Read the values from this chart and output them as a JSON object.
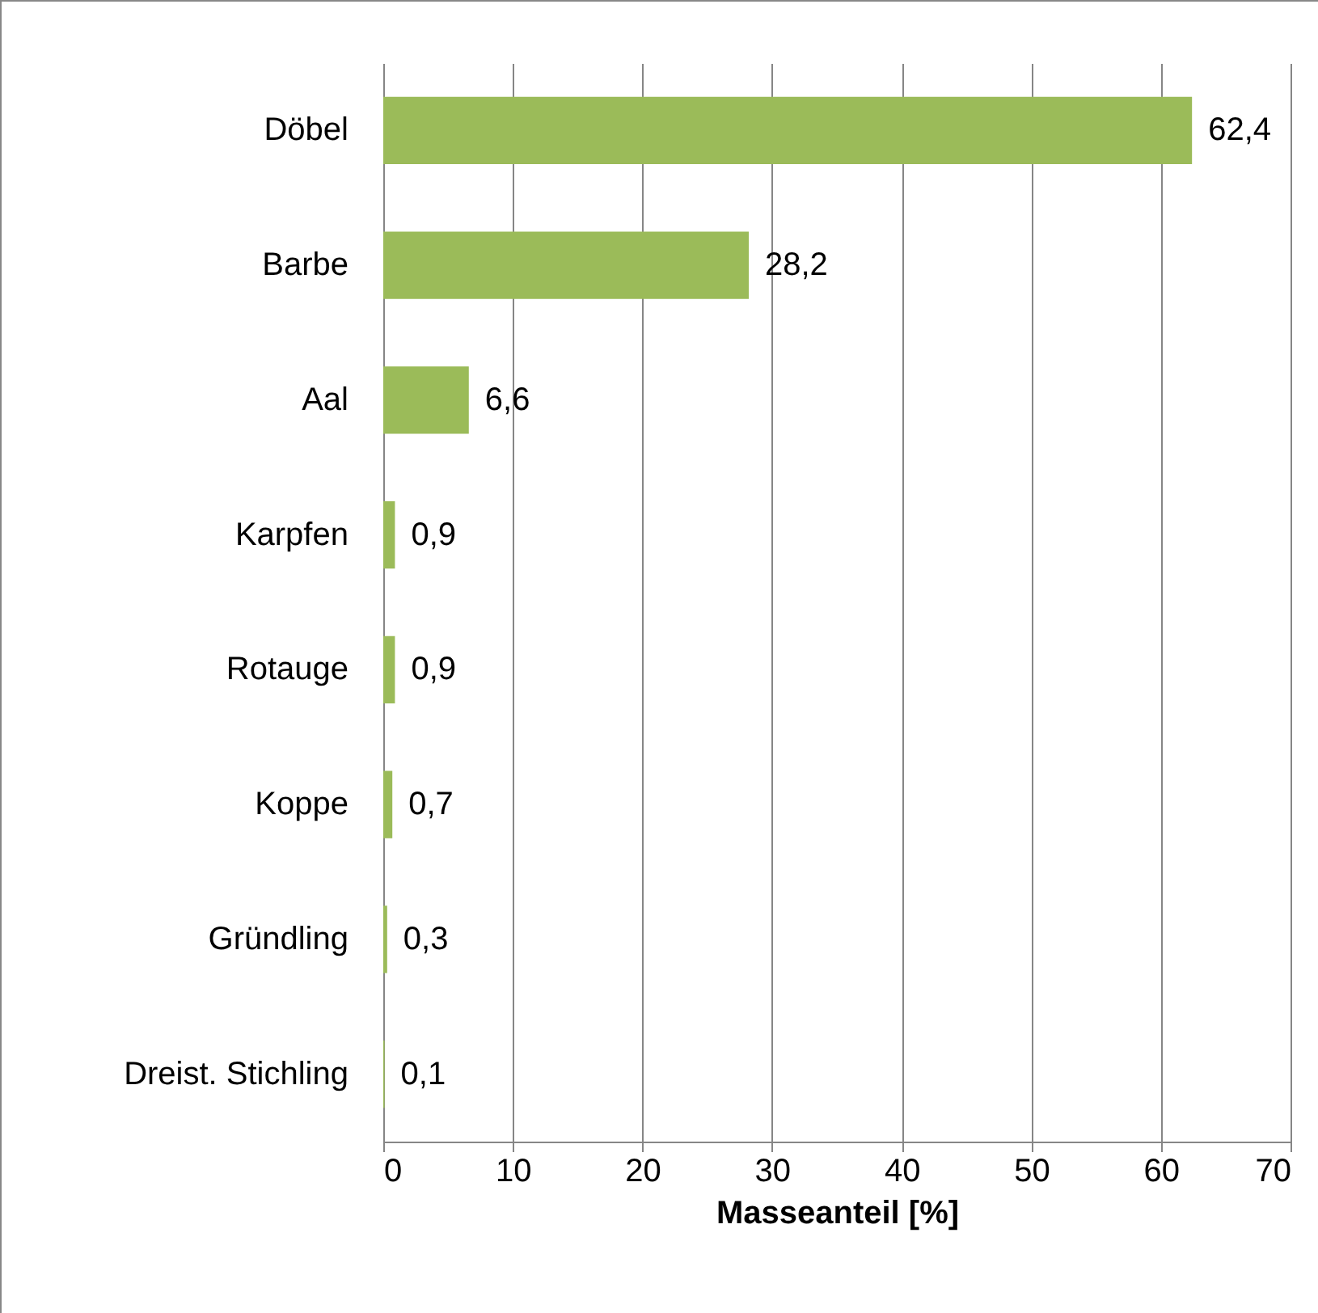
{
  "chart_data": {
    "type": "bar",
    "orientation": "horizontal",
    "categories": [
      "Döbel",
      "Barbe",
      "Aal",
      "Karpfen",
      "Rotauge",
      "Koppe",
      "Gründling",
      "Dreist. Stichling"
    ],
    "values": [
      62.4,
      28.2,
      6.6,
      0.9,
      0.9,
      0.7,
      0.3,
      0.1
    ],
    "value_labels": [
      "62,4",
      "28,2",
      "6,6",
      "0,9",
      "0,9",
      "0,7",
      "0,3",
      "0,1"
    ],
    "color": "#9bbb59",
    "xlabel": "Masseanteil [%]",
    "xlim": [
      0,
      70
    ],
    "xticks": [
      0,
      10,
      20,
      30,
      40,
      50,
      60,
      70
    ],
    "grid": "x"
  }
}
